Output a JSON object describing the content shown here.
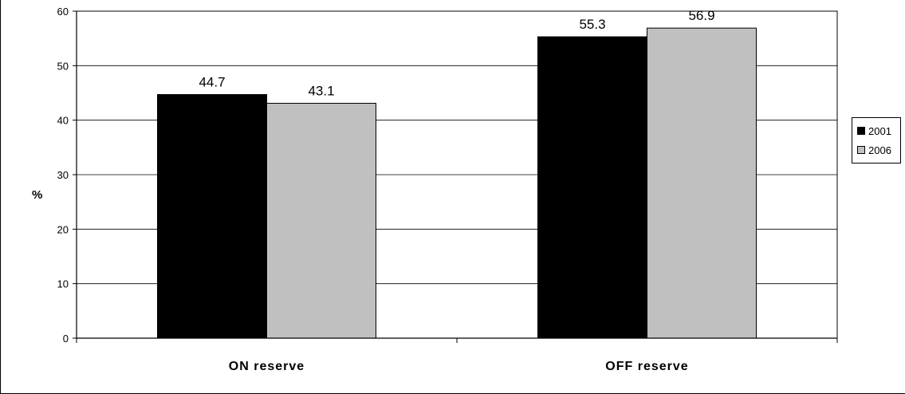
{
  "chart_data": {
    "type": "bar",
    "categories": [
      "ON reserve",
      "OFF reserve"
    ],
    "series": [
      {
        "name": "2001",
        "values": [
          44.7,
          55.3
        ],
        "color": "#000000"
      },
      {
        "name": "2006",
        "values": [
          43.1,
          56.9
        ],
        "color": "#c0c0c0"
      }
    ],
    "data_labels": [
      [
        "44.7",
        "55.3"
      ],
      [
        "43.1",
        "56.9"
      ]
    ],
    "ylabel": "%",
    "ylim": [
      0,
      60
    ],
    "yticks": [
      "0",
      "10",
      "20",
      "30",
      "40",
      "50",
      "60"
    ],
    "grid": true,
    "legend_position": "right"
  }
}
